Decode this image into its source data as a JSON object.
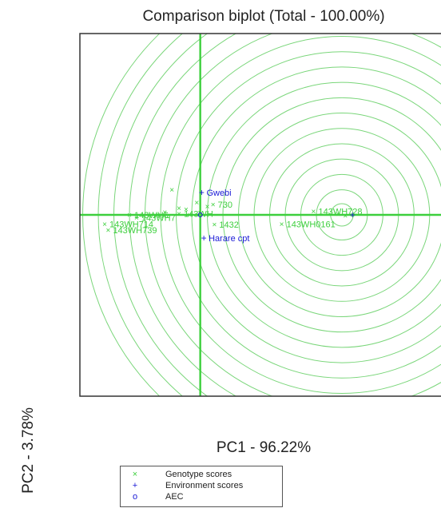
{
  "chart_data": {
    "type": "scatter",
    "title": "Comparison biplot (Total - 100.00%)",
    "xlabel": "PC1 - 96.22%",
    "ylabel": "PC2 - 3.78%",
    "xlim": [
      -1.7,
      3.4
    ],
    "ylim": [
      -2.6,
      2.6
    ],
    "grid": false,
    "center": [
      2.0,
      0.0
    ],
    "circle_radii": [
      0.16,
      0.36,
      0.58,
      0.8,
      1.02,
      1.24,
      1.46,
      1.68,
      1.9,
      2.12,
      2.34,
      2.56,
      2.78,
      3.0,
      3.22,
      3.44,
      3.66
    ],
    "colors": {
      "genotype": "#3dcf3d",
      "environment": "#1a1ad6",
      "aec": "#1a1ad6",
      "circles": "#7ad67a",
      "axis_lines": "#3dcf3d"
    },
    "genotypes": [
      {
        "label": "143WH728",
        "x": 1.6,
        "y": 0.05
      },
      {
        "label": "143WH714",
        "x": -1.35,
        "y": -0.13
      },
      {
        "label": "143WH739",
        "x": -1.3,
        "y": -0.22
      },
      {
        "label": "143WH",
        "x": -0.3,
        "y": 0.02
      },
      {
        "label": "730",
        "x": 0.18,
        "y": 0.15
      },
      {
        "label": "1432",
        "x": 0.2,
        "y": -0.14
      },
      {
        "label": "143WH0161",
        "x": 1.15,
        "y": -0.13
      },
      {
        "label": "143WH6",
        "x": -1.0,
        "y": 0.0
      },
      {
        "label": "143WH7",
        "x": -0.9,
        "y": -0.04
      },
      {
        "label": "",
        "x": 1.95,
        "y": 0.01
      },
      {
        "label": "",
        "x": 2.05,
        "y": -0.01
      },
      {
        "label": "",
        "x": 2.15,
        "y": 0.0
      },
      {
        "label": "",
        "x": -0.4,
        "y": 0.36
      },
      {
        "label": "",
        "x": -0.3,
        "y": 0.1
      },
      {
        "label": "",
        "x": -0.2,
        "y": 0.08
      },
      {
        "label": "",
        "x": -0.5,
        "y": 0.04
      },
      {
        "label": "",
        "x": -0.6,
        "y": 0.0
      },
      {
        "label": "",
        "x": -0.05,
        "y": 0.18
      },
      {
        "label": "",
        "x": 0.1,
        "y": 0.12
      },
      {
        "label": "",
        "x": -0.15,
        "y": 0.0
      }
    ],
    "environments": [
      {
        "label": "Gwebi",
        "x": 0.02,
        "y": 0.32
      },
      {
        "label": "Harare cpt",
        "x": 0.05,
        "y": -0.33
      },
      {
        "label": "",
        "x": 2.15,
        "y": 0.0
      }
    ],
    "aec": {
      "x": 0.0,
      "y": 0.0
    },
    "legend": {
      "placement": "bottom-center",
      "entries": [
        {
          "marker": "×",
          "label": "Genotype scores"
        },
        {
          "marker": "+",
          "label": "Environment scores"
        },
        {
          "marker": "o",
          "label": "AEC"
        }
      ]
    }
  }
}
